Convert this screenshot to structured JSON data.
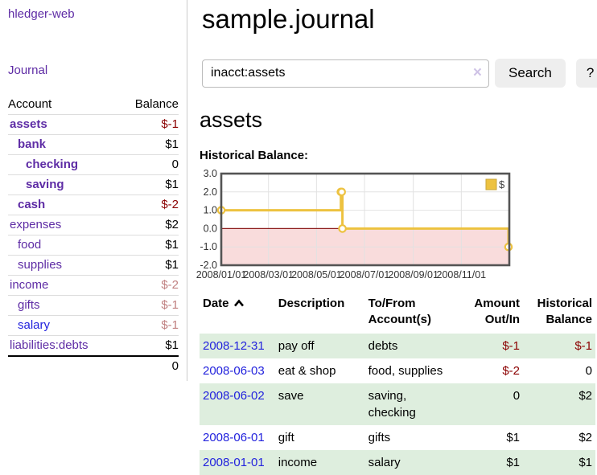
{
  "app_title": "hledger-web",
  "sidebar": {
    "nav_journal": "Journal",
    "accounts": {
      "header_account": "Account",
      "header_balance": "Balance",
      "rows": [
        {
          "label": "assets",
          "indent": 1,
          "bold": true,
          "balance": "$-1",
          "neg": "strong",
          "link_style": "purple"
        },
        {
          "label": "bank",
          "indent": 2,
          "bold": true,
          "balance": "$1",
          "neg": "none",
          "link_style": "purple"
        },
        {
          "label": "checking",
          "indent": 3,
          "bold": true,
          "balance": "0",
          "neg": "none",
          "link_style": "purple"
        },
        {
          "label": "saving",
          "indent": 3,
          "bold": true,
          "balance": "$1",
          "neg": "none",
          "link_style": "purple"
        },
        {
          "label": "cash",
          "indent": 2,
          "bold": true,
          "balance": "$-2",
          "neg": "strong",
          "link_style": "purple"
        },
        {
          "label": "expenses",
          "indent": 1,
          "bold": false,
          "balance": "$2",
          "neg": "none",
          "link_style": "purple"
        },
        {
          "label": "food",
          "indent": 2,
          "bold": false,
          "balance": "$1",
          "neg": "none",
          "link_style": "purple"
        },
        {
          "label": "supplies",
          "indent": 2,
          "bold": false,
          "balance": "$1",
          "neg": "none",
          "link_style": "purple"
        },
        {
          "label": "income",
          "indent": 1,
          "bold": false,
          "balance": "$-2",
          "neg": "soft",
          "link_style": "purple"
        },
        {
          "label": "gifts",
          "indent": 2,
          "bold": false,
          "balance": "$-1",
          "neg": "soft",
          "link_style": "purple"
        },
        {
          "label": "salary",
          "indent": 2,
          "bold": false,
          "balance": "$-1",
          "neg": "soft",
          "link_style": "blue"
        },
        {
          "label": "liabilities:debts",
          "indent": 1,
          "bold": false,
          "balance": "$1",
          "neg": "none",
          "link_style": "purple"
        }
      ],
      "total": "0"
    }
  },
  "header": {
    "title": "sample.journal"
  },
  "search": {
    "value": "inacct:assets",
    "clear_icon": "×",
    "search_button": "Search",
    "help_button": "?"
  },
  "account_page": {
    "heading": "assets",
    "chart_title": "Historical Balance:"
  },
  "chart_data": {
    "type": "line",
    "step": true,
    "title": "Historical Balance",
    "legend": [
      {
        "label": "$",
        "color": "#edc240"
      }
    ],
    "legend_position": "top-right",
    "series": [
      {
        "name": "$",
        "color": "#edc240",
        "points": [
          {
            "date": "2008-01-01",
            "value": 1
          },
          {
            "date": "2008-06-01",
            "value": 2
          },
          {
            "date": "2008-06-02",
            "value": 2
          },
          {
            "date": "2008-06-03",
            "value": 0
          },
          {
            "date": "2008-12-31",
            "value": -1
          }
        ]
      }
    ],
    "xrange": [
      "2008-01-01",
      "2008-12-31"
    ],
    "ylim": [
      -2,
      3
    ],
    "ytick_labels": [
      "3.0",
      "2.0",
      "1.0",
      "0.0",
      "-1.0",
      "-2.0"
    ],
    "ytick_values": [
      3,
      2,
      1,
      0,
      -1,
      -2
    ],
    "xtick_labels": [
      "2008/01/01",
      "2008/03/01",
      "2008/05/01",
      "2008/07/01",
      "2008/09/01",
      "2008/11/01"
    ],
    "grid": true,
    "colors": {
      "negative_region": "#f9dcdc",
      "zero_line": "#8b1a1a",
      "grid": "#e2e2e2",
      "border": "#545454",
      "marker_fill": "#ffffff",
      "legend_box_border": "#c8a63a"
    }
  },
  "register": {
    "headers": {
      "date": "Date",
      "description": "Description",
      "account": "To/From Account(s)",
      "amount": "Amount Out/In",
      "balance": "Historical Balance"
    },
    "sort": {
      "column": "date",
      "direction": "ascending"
    },
    "rows": [
      {
        "date": "2008-12-31",
        "description": "pay off",
        "accounts": "debts",
        "amount": "$-1",
        "balance": "$-1",
        "amount_negative": true,
        "balance_negative": true,
        "highlighted": true
      },
      {
        "date": "2008-06-03",
        "description": "eat & shop",
        "accounts": "food, supplies",
        "amount": "$-2",
        "balance": "0",
        "amount_negative": true,
        "balance_negative": false,
        "highlighted": false
      },
      {
        "date": "2008-06-02",
        "description": "save",
        "accounts": "saving,\nchecking",
        "amount": "0",
        "balance": "$2",
        "amount_negative": false,
        "balance_negative": false,
        "highlighted": true
      },
      {
        "date": "2008-06-01",
        "description": "gift",
        "accounts": "gifts",
        "amount": "$1",
        "balance": "$2",
        "amount_negative": false,
        "balance_negative": false,
        "highlighted": false
      },
      {
        "date": "2008-01-01",
        "description": "income",
        "accounts": "salary",
        "amount": "$1",
        "balance": "$1",
        "amount_negative": false,
        "balance_negative": false,
        "highlighted": true
      }
    ]
  },
  "colors": {
    "link_purple": "#5e2ca5",
    "link_blue": "#2222dd",
    "negative_strong": "#8b0000",
    "negative_soft": "#c08080",
    "row_highlight_green": "#deeede"
  }
}
